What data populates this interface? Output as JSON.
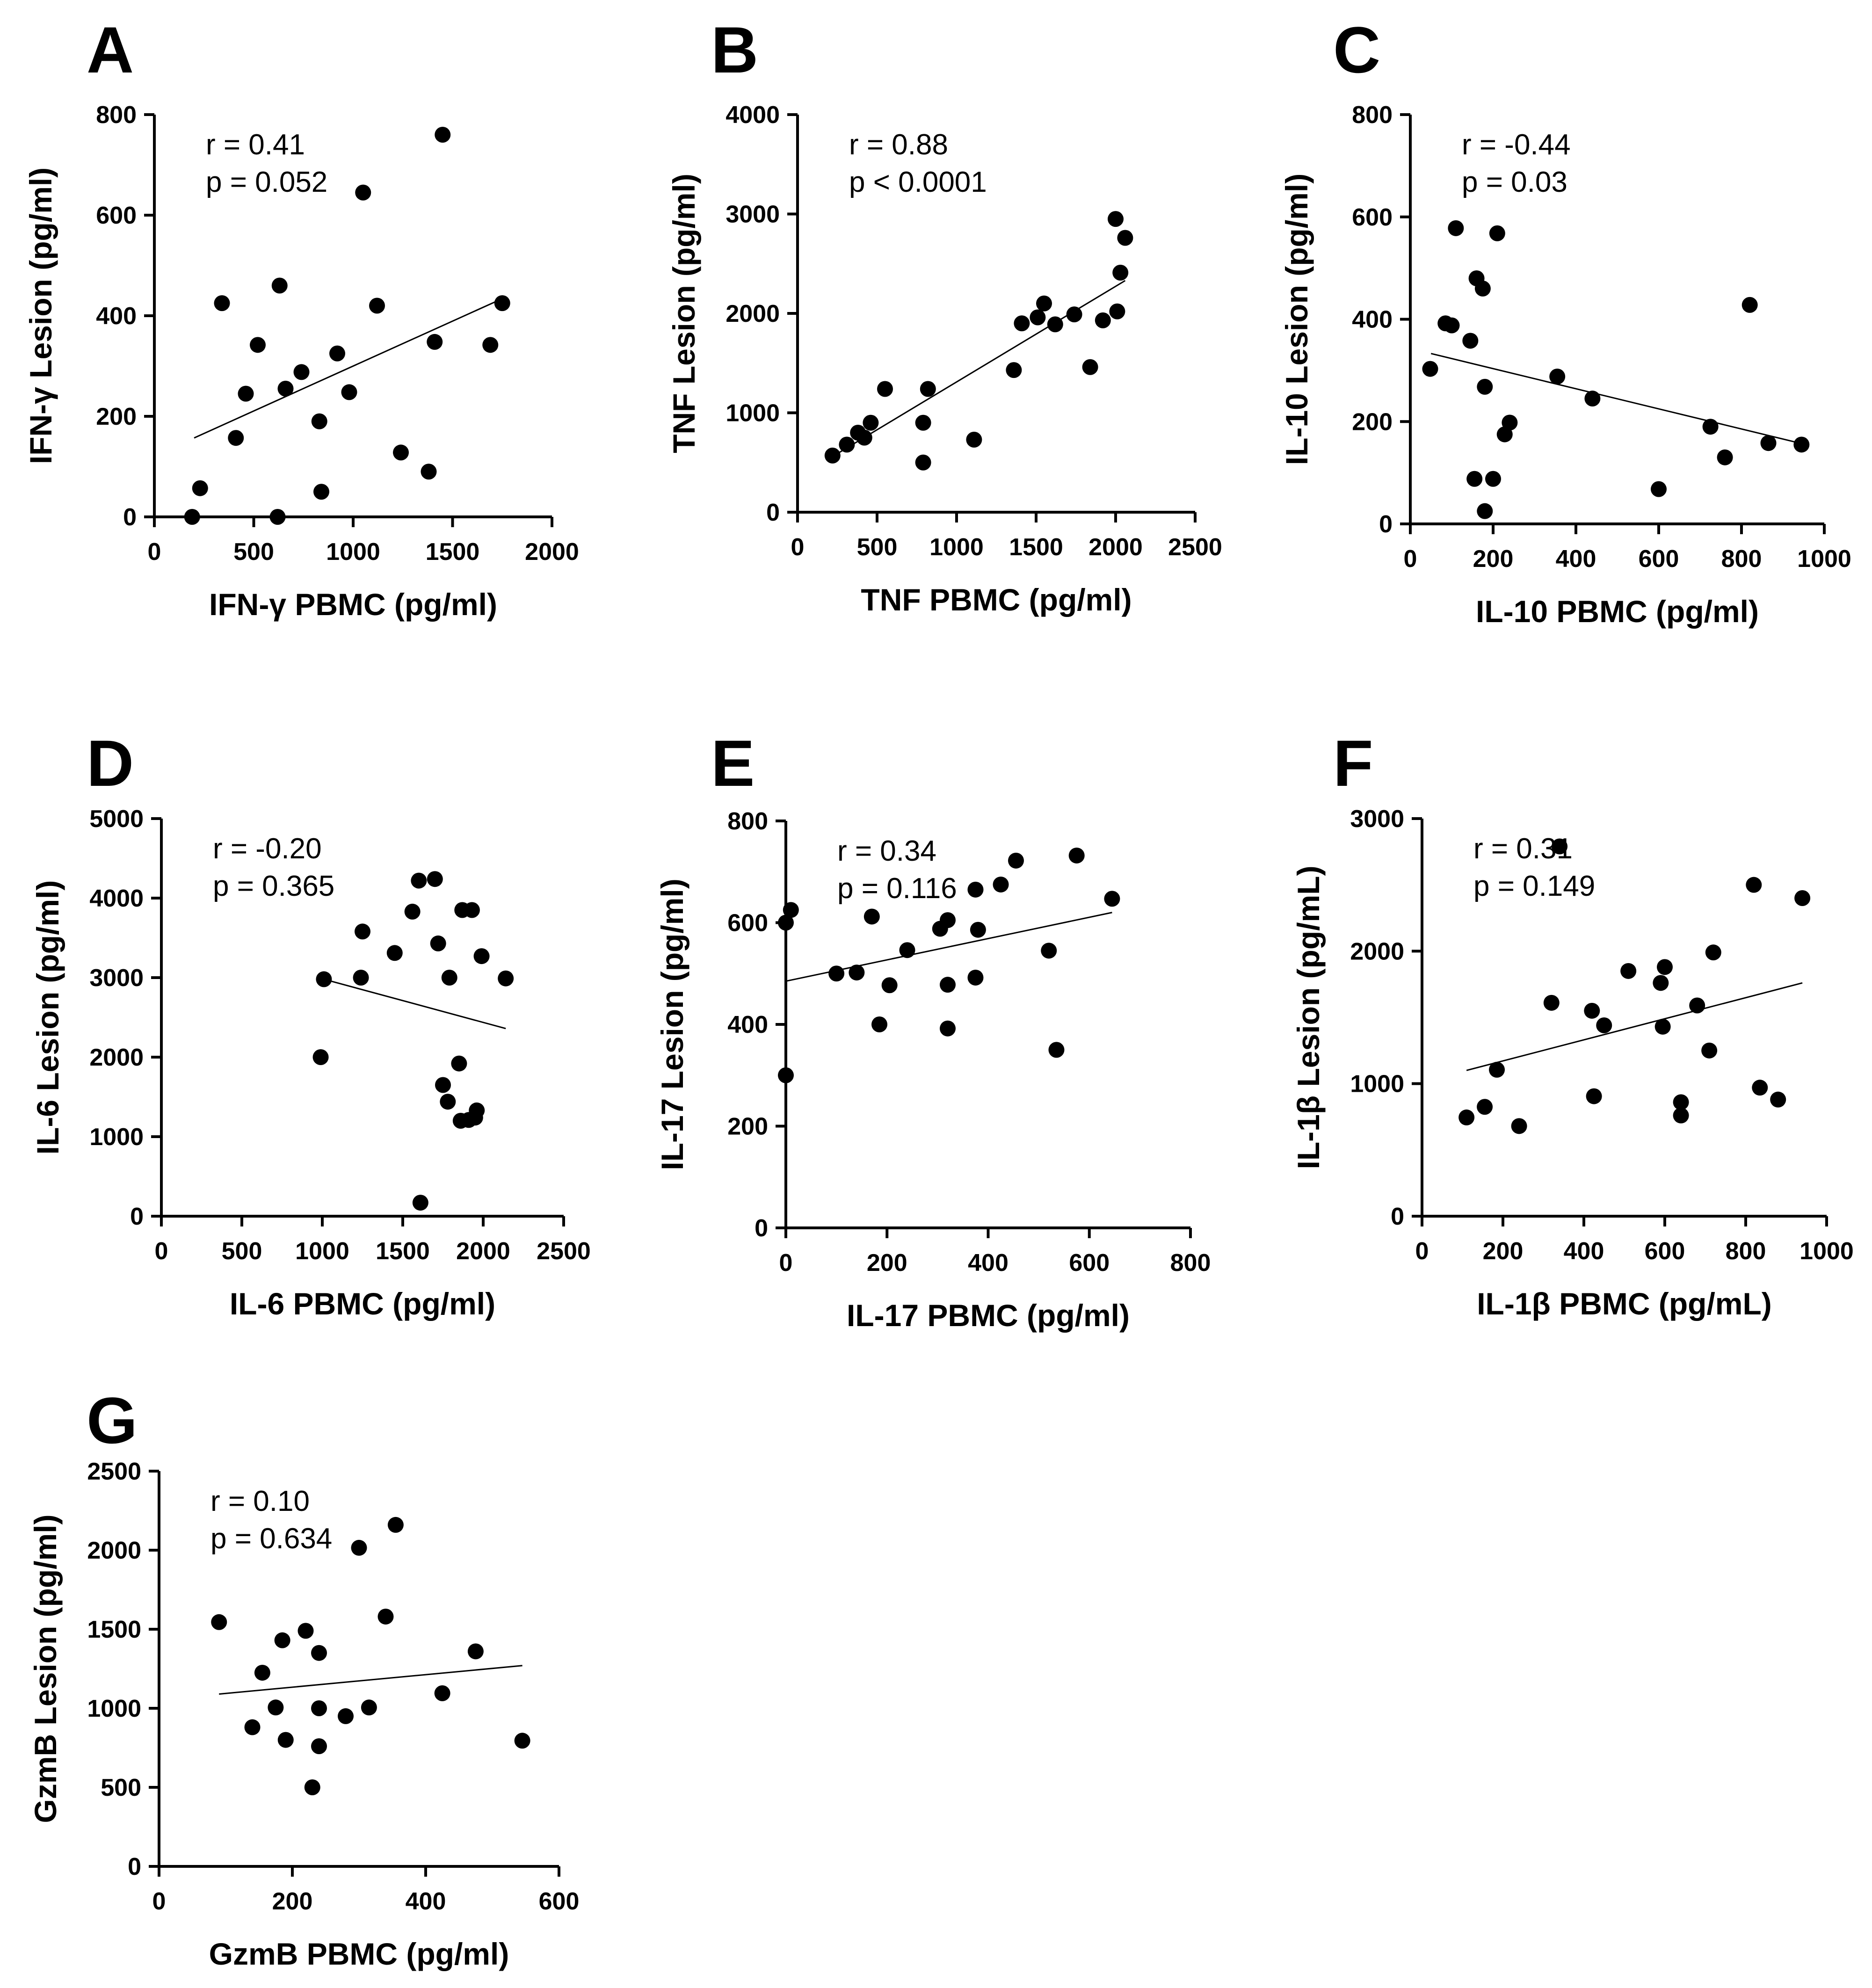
{
  "chart_data": [
    {
      "type": "scatter",
      "panel": "A",
      "xlabel": "IFN-γ PBMC (pg/ml)",
      "ylabel": "IFN-γ Lesion (pg/ml)",
      "xlim": [
        0,
        2000
      ],
      "ylim": [
        0,
        800
      ],
      "xticks": [
        0,
        500,
        1000,
        1500,
        2000
      ],
      "yticks": [
        0,
        200,
        400,
        600,
        800
      ],
      "r_text": "r = 0.41",
      "p_text": "p = 0.052",
      "fit": [
        [
          200,
          157
        ],
        [
          1750,
          434
        ]
      ],
      "points": [
        [
          190,
          0
        ],
        [
          230,
          57
        ],
        [
          340,
          425
        ],
        [
          410,
          157
        ],
        [
          460,
          245
        ],
        [
          520,
          342
        ],
        [
          620,
          0
        ],
        [
          630,
          460
        ],
        [
          660,
          255
        ],
        [
          740,
          288
        ],
        [
          830,
          190
        ],
        [
          840,
          50
        ],
        [
          920,
          325
        ],
        [
          980,
          248
        ],
        [
          1050,
          645
        ],
        [
          1120,
          420
        ],
        [
          1240,
          128
        ],
        [
          1380,
          90
        ],
        [
          1410,
          348
        ],
        [
          1450,
          760
        ],
        [
          1690,
          342
        ],
        [
          1750,
          425
        ]
      ]
    },
    {
      "type": "scatter",
      "panel": "B",
      "xlabel": "TNF PBMC (pg/ml)",
      "ylabel": "TNF Lesion (pg/ml)",
      "xlim": [
        0,
        2500
      ],
      "ylim": [
        0,
        4000
      ],
      "xticks": [
        0,
        500,
        1000,
        1500,
        2000,
        2500
      ],
      "yticks": [
        0,
        1000,
        2000,
        3000,
        4000
      ],
      "r_text": "r = 0.88",
      "p_text": "p < 0.0001",
      "fit": [
        [
          220,
          560
        ],
        [
          2060,
          2330
        ]
      ],
      "points": [
        [
          220,
          570
        ],
        [
          310,
          680
        ],
        [
          380,
          800
        ],
        [
          420,
          750
        ],
        [
          460,
          900
        ],
        [
          550,
          1240
        ],
        [
          790,
          500
        ],
        [
          790,
          900
        ],
        [
          820,
          1240
        ],
        [
          1110,
          730
        ],
        [
          1360,
          1430
        ],
        [
          1410,
          1900
        ],
        [
          1510,
          1960
        ],
        [
          1550,
          2100
        ],
        [
          1620,
          1890
        ],
        [
          1740,
          1990
        ],
        [
          1840,
          1460
        ],
        [
          1920,
          1930
        ],
        [
          2000,
          2950
        ],
        [
          2010,
          2020
        ],
        [
          2030,
          2410
        ],
        [
          2060,
          2760
        ]
      ]
    },
    {
      "type": "scatter",
      "panel": "C",
      "xlabel": "IL-10 PBMC (pg/ml)",
      "ylabel": "IL-10 Lesion (pg/ml)",
      "xlim": [
        0,
        1000
      ],
      "ylim": [
        0,
        800
      ],
      "xticks": [
        0,
        200,
        400,
        600,
        800,
        1000
      ],
      "yticks": [
        0,
        200,
        400,
        600,
        800
      ],
      "r_text": "r = -0.44",
      "p_text": "p = 0.03",
      "fit": [
        [
          50,
          333
        ],
        [
          940,
          158
        ]
      ],
      "points": [
        [
          48,
          303
        ],
        [
          85,
          392
        ],
        [
          100,
          388
        ],
        [
          110,
          578
        ],
        [
          145,
          358
        ],
        [
          155,
          88
        ],
        [
          160,
          480
        ],
        [
          175,
          460
        ],
        [
          180,
          268
        ],
        [
          180,
          25
        ],
        [
          200,
          88
        ],
        [
          210,
          568
        ],
        [
          228,
          175
        ],
        [
          240,
          198
        ],
        [
          355,
          288
        ],
        [
          440,
          245
        ],
        [
          600,
          68
        ],
        [
          725,
          190
        ],
        [
          760,
          130
        ],
        [
          820,
          428
        ],
        [
          865,
          158
        ],
        [
          945,
          155
        ]
      ]
    },
    {
      "type": "scatter",
      "panel": "D",
      "xlabel": "IL-6 PBMC (pg/ml)",
      "ylabel": "IL-6 Lesion (pg/ml)",
      "xlim": [
        0,
        2500
      ],
      "ylim": [
        0,
        5000
      ],
      "xticks": [
        0,
        500,
        1000,
        1500,
        2000,
        2500
      ],
      "yticks": [
        0,
        1000,
        2000,
        3000,
        4000,
        5000
      ],
      "r_text": "r = -0.20",
      "p_text": "p = 0.365",
      "fit": [
        [
          1010,
          2980
        ],
        [
          2140,
          2360
        ]
      ],
      "points": [
        [
          990,
          2000
        ],
        [
          1010,
          2980
        ],
        [
          1240,
          3000
        ],
        [
          1250,
          3580
        ],
        [
          1450,
          3310
        ],
        [
          1560,
          3830
        ],
        [
          1600,
          4220
        ],
        [
          1610,
          170
        ],
        [
          1700,
          4240
        ],
        [
          1720,
          3430
        ],
        [
          1750,
          1650
        ],
        [
          1780,
          1440
        ],
        [
          1790,
          3000
        ],
        [
          1850,
          1920
        ],
        [
          1860,
          1200
        ],
        [
          1870,
          3850
        ],
        [
          1910,
          1210
        ],
        [
          1930,
          3850
        ],
        [
          1950,
          1240
        ],
        [
          1960,
          1330
        ],
        [
          1990,
          3270
        ],
        [
          2140,
          2990
        ]
      ]
    },
    {
      "type": "scatter",
      "panel": "E",
      "xlabel": "IL-17 PBMC (pg/ml)",
      "ylabel": "IL-17 Lesion (pg/ml)",
      "xlim": [
        0,
        800
      ],
      "ylim": [
        0,
        800
      ],
      "xticks": [
        0,
        200,
        400,
        600,
        800
      ],
      "yticks": [
        0,
        200,
        400,
        600,
        800
      ],
      "r_text": "r = 0.34",
      "p_text": "p = 0.116",
      "fit": [
        [
          0,
          485
        ],
        [
          645,
          620
        ]
      ],
      "points": [
        [
          0,
          300
        ],
        [
          0,
          600
        ],
        [
          10,
          625
        ],
        [
          100,
          500
        ],
        [
          140,
          502
        ],
        [
          170,
          612
        ],
        [
          185,
          400
        ],
        [
          205,
          477
        ],
        [
          240,
          546
        ],
        [
          305,
          588
        ],
        [
          320,
          392
        ],
        [
          320,
          478
        ],
        [
          320,
          605
        ],
        [
          375,
          492
        ],
        [
          375,
          665
        ],
        [
          380,
          586
        ],
        [
          425,
          675
        ],
        [
          455,
          722
        ],
        [
          520,
          545
        ],
        [
          535,
          350
        ],
        [
          575,
          732
        ],
        [
          645,
          647
        ]
      ]
    },
    {
      "type": "scatter",
      "panel": "F",
      "xlabel": "IL-1β PBMC (pg/mL)",
      "ylabel": "IL-1β Lesion (pg/mL)",
      "xlim": [
        0,
        1000
      ],
      "ylim": [
        0,
        3000
      ],
      "xticks": [
        0,
        200,
        400,
        600,
        800,
        1000
      ],
      "yticks": [
        0,
        1000,
        2000,
        3000
      ],
      "r_text": "r = 0.31",
      "p_text": "p = 0.149",
      "fit": [
        [
          110,
          1100
        ],
        [
          940,
          1760
        ]
      ],
      "points": [
        [
          110,
          745
        ],
        [
          155,
          825
        ],
        [
          185,
          1105
        ],
        [
          240,
          680
        ],
        [
          320,
          1610
        ],
        [
          340,
          2790
        ],
        [
          420,
          1550
        ],
        [
          425,
          905
        ],
        [
          450,
          1440
        ],
        [
          510,
          1850
        ],
        [
          590,
          1760
        ],
        [
          595,
          1430
        ],
        [
          600,
          1880
        ],
        [
          640,
          860
        ],
        [
          640,
          760
        ],
        [
          680,
          1590
        ],
        [
          710,
          1250
        ],
        [
          720,
          1990
        ],
        [
          820,
          2500
        ],
        [
          835,
          970
        ],
        [
          880,
          880
        ],
        [
          940,
          2400
        ]
      ]
    },
    {
      "type": "scatter",
      "panel": "G",
      "xlabel": "GzmB PBMC (pg/ml)",
      "ylabel": "GzmB Lesion (pg/ml)",
      "xlim": [
        0,
        600
      ],
      "ylim": [
        0,
        2500
      ],
      "xticks": [
        0,
        200,
        400,
        600
      ],
      "yticks": [
        0,
        500,
        1000,
        1500,
        2000,
        2500
      ],
      "r_text": "r = 0.10",
      "p_text": "p = 0.634",
      "fit": [
        [
          90,
          1090
        ],
        [
          545,
          1270
        ]
      ],
      "points": [
        [
          90,
          1545
        ],
        [
          140,
          880
        ],
        [
          155,
          1225
        ],
        [
          175,
          1005
        ],
        [
          185,
          1430
        ],
        [
          190,
          800
        ],
        [
          220,
          1490
        ],
        [
          230,
          500
        ],
        [
          240,
          1350
        ],
        [
          240,
          1000
        ],
        [
          240,
          760
        ],
        [
          280,
          950
        ],
        [
          300,
          2015
        ],
        [
          315,
          1005
        ],
        [
          340,
          1580
        ],
        [
          355,
          2160
        ],
        [
          425,
          1095
        ],
        [
          475,
          1360
        ],
        [
          545,
          795
        ]
      ]
    }
  ]
}
